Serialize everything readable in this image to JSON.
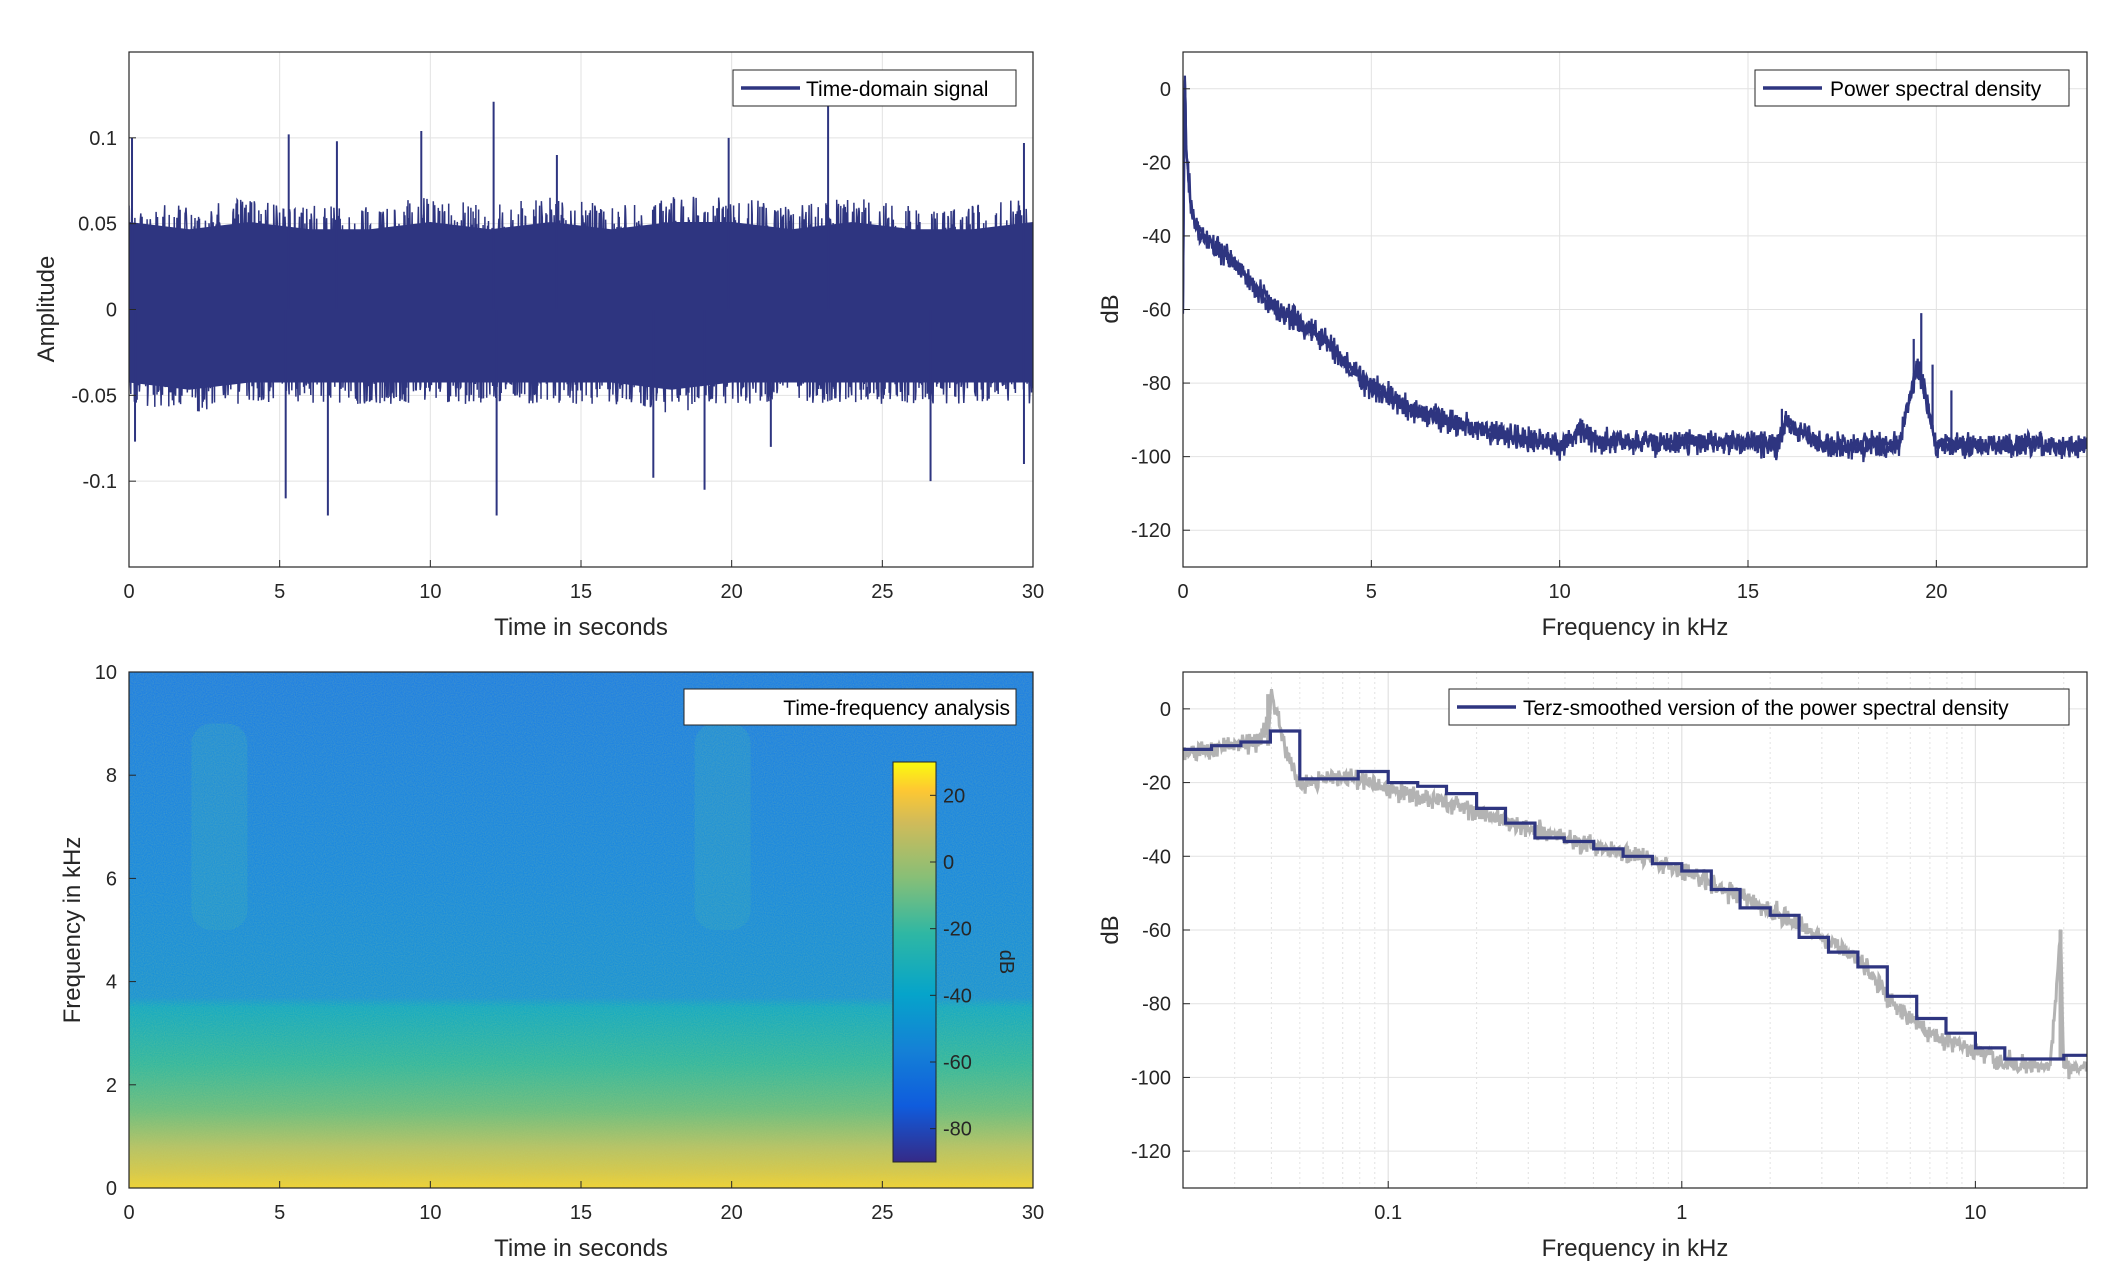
{
  "colors": {
    "signal": "#2e3580",
    "smoothed_gray": "#b3b3b3",
    "grid": "#e2e2e2",
    "axes": "#262626"
  },
  "chart_data": [
    {
      "id": "time_signal",
      "type": "line",
      "legend": "Time-domain signal",
      "legend_position": "top-right",
      "xlabel": "Time in seconds",
      "ylabel": "Amplitude",
      "xlim": [
        0,
        30
      ],
      "ylim": [
        -0.15,
        0.15
      ],
      "xticks": [
        0,
        5,
        10,
        15,
        20,
        25,
        30
      ],
      "yticks": [
        -0.1,
        -0.05,
        0,
        0.05,
        0.1
      ],
      "ytick_labels": [
        "-0.1",
        "-0.05",
        "0",
        "0.05",
        "0.1"
      ],
      "grid": true,
      "series": [
        {
          "envelope_upper": [
            [
              0,
              0.06
            ],
            [
              2,
              0.055
            ],
            [
              4,
              0.06
            ],
            [
              6,
              0.055
            ],
            [
              8,
              0.055
            ],
            [
              10,
              0.06
            ],
            [
              12,
              0.055
            ],
            [
              14,
              0.06
            ],
            [
              16,
              0.055
            ],
            [
              18,
              0.06
            ],
            [
              20,
              0.06
            ],
            [
              22,
              0.055
            ],
            [
              24,
              0.06
            ],
            [
              26,
              0.055
            ],
            [
              28,
              0.055
            ],
            [
              30,
              0.06
            ]
          ],
          "envelope_lower": [
            [
              0,
              -0.05
            ],
            [
              2,
              -0.055
            ],
            [
              4,
              -0.05
            ],
            [
              6,
              -0.05
            ],
            [
              8,
              -0.05
            ],
            [
              10,
              -0.05
            ],
            [
              12,
              -0.05
            ],
            [
              14,
              -0.05
            ],
            [
              16,
              -0.05
            ],
            [
              18,
              -0.055
            ],
            [
              20,
              -0.05
            ],
            [
              22,
              -0.05
            ],
            [
              24,
              -0.05
            ],
            [
              26,
              -0.05
            ],
            [
              28,
              -0.05
            ],
            [
              30,
              -0.05
            ]
          ],
          "peaks": [
            [
              0.1,
              0.1
            ],
            [
              5.3,
              0.102
            ],
            [
              6.9,
              0.098
            ],
            [
              9.7,
              0.104
            ],
            [
              12.1,
              0.121
            ],
            [
              14.2,
              0.09
            ],
            [
              19.9,
              0.1
            ],
            [
              23.2,
              0.119
            ],
            [
              29.7,
              0.097
            ]
          ],
          "troughs": [
            [
              0.2,
              -0.077
            ],
            [
              5.2,
              -0.11
            ],
            [
              6.6,
              -0.12
            ],
            [
              12.2,
              -0.12
            ],
            [
              17.4,
              -0.098
            ],
            [
              19.1,
              -0.105
            ],
            [
              21.3,
              -0.08
            ],
            [
              26.6,
              -0.1
            ],
            [
              29.7,
              -0.09
            ]
          ]
        }
      ]
    },
    {
      "id": "psd",
      "type": "line",
      "legend": "Power spectral density",
      "legend_position": "top-right",
      "xlabel": "Frequency in kHz",
      "ylabel": "dB",
      "xlim": [
        0,
        24
      ],
      "ylim": [
        -130,
        10
      ],
      "xticks": [
        0,
        5,
        10,
        15,
        20
      ],
      "yticks": [
        -120,
        -100,
        -80,
        -60,
        -40,
        -20,
        0
      ],
      "grid": true,
      "series": [
        {
          "x": [
            0,
            0.05,
            0.1,
            0.2,
            0.3,
            0.5,
            1,
            1.5,
            2,
            2.5,
            3,
            3.5,
            4,
            4.5,
            5,
            6,
            7,
            8,
            9,
            10,
            10.5,
            11,
            12,
            13,
            14,
            15,
            15.8,
            16,
            17,
            18,
            19,
            19.5,
            20,
            21,
            22,
            23,
            24
          ],
          "y": [
            -60,
            3,
            -20,
            -30,
            -36,
            -40,
            -44,
            -49,
            -55,
            -60,
            -63,
            -66,
            -71,
            -76,
            -81,
            -87,
            -90,
            -93,
            -95,
            -97,
            -93,
            -96,
            -96,
            -96,
            -96,
            -96,
            -97,
            -91,
            -97,
            -97,
            -97,
            -75,
            -97,
            -97,
            -97,
            -97,
            -97
          ],
          "band_width_db": 6,
          "spikes": [
            [
              19.4,
              -68
            ],
            [
              19.6,
              -61
            ],
            [
              19.9,
              -75
            ],
            [
              20.4,
              -82
            ],
            [
              15.9,
              -87
            ],
            [
              10.6,
              -90
            ]
          ]
        }
      ]
    },
    {
      "id": "spectrogram",
      "type": "heatmap",
      "legend": "Time-frequency analysis",
      "legend_position": "top-right",
      "xlabel": "Time in seconds",
      "ylabel": "Frequency in kHz",
      "xlim": [
        0,
        30
      ],
      "ylim": [
        0,
        10
      ],
      "xticks": [
        0,
        5,
        10,
        15,
        20,
        25,
        30
      ],
      "yticks": [
        0,
        2,
        4,
        6,
        8,
        10
      ],
      "colorbar": {
        "label": "dB",
        "range": [
          -90,
          30
        ],
        "ticks": [
          -80,
          -60,
          -40,
          -20,
          0,
          20
        ],
        "colormap": "parula"
      },
      "freq_profile_db": [
        [
          0,
          10
        ],
        [
          0.3,
          0
        ],
        [
          1,
          -10
        ],
        [
          2,
          -22
        ],
        [
          3,
          -28
        ],
        [
          3.8,
          -32
        ],
        [
          4,
          -42
        ],
        [
          6,
          -48
        ],
        [
          8,
          -54
        ],
        [
          10,
          -58
        ]
      ],
      "time_bursts": [
        [
          3,
          -7
        ],
        [
          19.7,
          -7
        ]
      ]
    },
    {
      "id": "terz",
      "type": "line",
      "legend": "Terz-smoothed version of the power spectral density",
      "legend_position": "top-right",
      "xlabel": "Frequency in kHz",
      "ylabel": "dB",
      "xscale": "log",
      "xlim": [
        0.02,
        24
      ],
      "ylim": [
        -130,
        10
      ],
      "xticks": [
        0.1,
        1,
        10
      ],
      "xtick_labels": [
        "0.1",
        "1",
        "10"
      ],
      "yticks": [
        -120,
        -100,
        -80,
        -60,
        -40,
        -20,
        0
      ],
      "grid": true,
      "series": [
        {
          "name": "raw",
          "x": [
            0.02,
            0.025,
            0.03,
            0.035,
            0.039,
            0.04,
            0.045,
            0.05,
            0.07,
            0.1,
            0.15,
            0.2,
            0.3,
            0.5,
            0.7,
            1,
            1.5,
            2,
            3,
            4,
            5,
            6,
            7,
            8,
            10,
            12,
            15,
            18,
            19.5,
            20,
            22,
            24
          ],
          "y": [
            -12,
            -11,
            -10,
            -9,
            -5,
            4,
            -12,
            -20,
            -18,
            -22,
            -25,
            -28,
            -33,
            -37,
            -40,
            -44,
            -50,
            -55,
            -62,
            -68,
            -78,
            -84,
            -88,
            -90,
            -93,
            -96,
            -97,
            -97,
            -60,
            -97,
            -97,
            -97
          ],
          "band_width_db": 5
        },
        {
          "name": "smoothed",
          "steps": [
            [
              0.02,
              0.025,
              -11
            ],
            [
              0.025,
              0.0315,
              -10
            ],
            [
              0.0315,
              0.0397,
              -9
            ],
            [
              0.0397,
              0.05,
              -6
            ],
            [
              0.05,
              0.063,
              -19
            ],
            [
              0.063,
              0.079,
              -19
            ],
            [
              0.079,
              0.1,
              -17
            ],
            [
              0.1,
              0.126,
              -20
            ],
            [
              0.126,
              0.158,
              -21
            ],
            [
              0.158,
              0.2,
              -23
            ],
            [
              0.2,
              0.251,
              -27
            ],
            [
              0.251,
              0.316,
              -31
            ],
            [
              0.316,
              0.398,
              -35
            ],
            [
              0.398,
              0.501,
              -36
            ],
            [
              0.501,
              0.631,
              -38
            ],
            [
              0.631,
              0.794,
              -40
            ],
            [
              0.794,
              1,
              -42
            ],
            [
              1,
              1.26,
              -44
            ],
            [
              1.26,
              1.58,
              -49
            ],
            [
              1.58,
              2,
              -54
            ],
            [
              2,
              2.51,
              -56
            ],
            [
              2.51,
              3.16,
              -62
            ],
            [
              3.16,
              3.98,
              -66
            ],
            [
              3.98,
              5.01,
              -70
            ],
            [
              5.01,
              6.31,
              -78
            ],
            [
              6.31,
              7.94,
              -84
            ],
            [
              7.94,
              10,
              -88
            ],
            [
              10,
              12.6,
              -92
            ],
            [
              12.6,
              15.8,
              -95
            ],
            [
              15.8,
              20,
              -95
            ],
            [
              20,
              24,
              -94
            ]
          ]
        }
      ]
    }
  ]
}
